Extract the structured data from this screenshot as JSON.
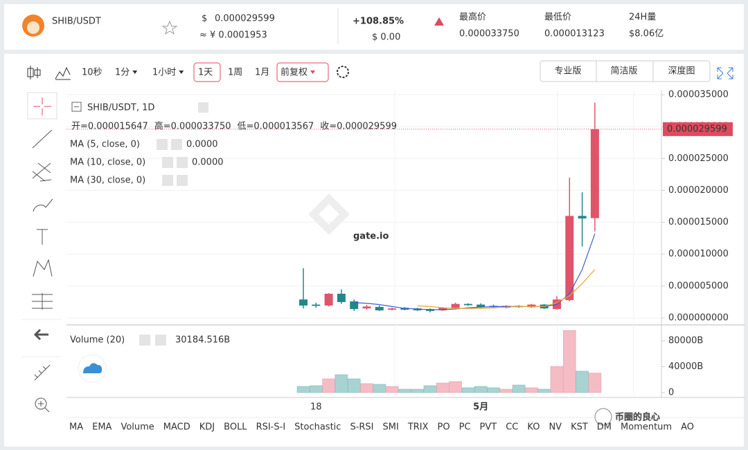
{
  "header": {
    "pair": "SHIB/USDT",
    "currency_symbol": "$",
    "price": "0.000029599",
    "approx": "≈ ¥ 0.0001953",
    "change": "+108.85%",
    "change_usd": "$ 0.00",
    "stats": [
      {
        "label": "最高价",
        "value": "0.000033750"
      },
      {
        "label": "最低价",
        "value": "0.000013123"
      },
      {
        "label": "24H量",
        "value": "$8.06亿"
      }
    ]
  },
  "toolbar": {
    "intervals": [
      "10秒",
      "1分",
      "1小时",
      "1天",
      "1周",
      "1月"
    ],
    "adjust": "前复权",
    "views": [
      "专业版",
      "简洁版",
      "深度图"
    ]
  },
  "chart_data": {
    "type": "candlestick",
    "title": "SHIB/USDT, 1D",
    "ohlc_header": [
      {
        "label": "开=",
        "value": "0.000015647"
      },
      {
        "label": "高=",
        "value": "0.000033750"
      },
      {
        "label": "低=",
        "value": "0.000013567"
      },
      {
        "label": "收=",
        "value": "0.000029599"
      }
    ],
    "categories": [
      null,
      "18",
      null,
      null,
      null,
      null,
      null,
      null,
      null,
      null,
      null,
      null,
      null,
      null,
      "5月",
      null,
      null,
      null,
      null,
      null,
      null,
      null,
      null,
      null
    ],
    "open": [
      2.9e-06,
      2.1e-06,
      1.95e-06,
      3.8e-06,
      2.6e-06,
      1.5e-06,
      1.73e-06,
      1.3e-06,
      1.6e-06,
      1.5e-06,
      1.4e-06,
      1.2e-06,
      1.6e-06,
      2.2e-06,
      2.1e-06,
      1.9e-06,
      1.6e-06,
      1.9e-06,
      1.7e-06,
      2.1e-06,
      1.4e-06,
      2.8e-06,
      1.6e-05,
      1.5647e-05
    ],
    "high": [
      7.8e-06,
      2.4e-06,
      3.9e-06,
      4.5e-06,
      2.9e-06,
      2.06e-06,
      1.95e-06,
      1.6e-06,
      1.7e-06,
      1.6e-06,
      1.5e-06,
      1.7e-06,
      2.4e-06,
      2.3e-06,
      2.3e-06,
      2.1e-06,
      2e-06,
      2e-06,
      2.2e-06,
      2.2e-06,
      3.4e-06,
      2.2e-05,
      1.97e-05,
      3.375e-05
    ],
    "low": [
      1.5e-06,
      1.6e-06,
      1.8e-06,
      2.2e-06,
      1.1e-06,
      1.3e-06,
      1.08e-06,
      1.2e-06,
      1.2e-06,
      1.1e-06,
      8.7e-07,
      1.1e-06,
      1.5e-06,
      1.9e-06,
      1.6e-06,
      1.6e-06,
      1.5e-06,
      1.6e-06,
      1.6e-06,
      1.4e-06,
      1.3e-06,
      2.6e-06,
      1.12e-05,
      1.3567e-05
    ],
    "close": [
      1.95e-06,
      1.9e-06,
      3.8e-06,
      2.5e-06,
      1.4e-06,
      1.8e-06,
      1.19e-06,
      1.5e-06,
      1.3e-06,
      1.2e-06,
      1.1e-06,
      1.6e-06,
      2.2e-06,
      2e-06,
      1.7e-06,
      1.7e-06,
      1.9e-06,
      1.7e-06,
      2.1e-06,
      1.5e-06,
      2.9e-06,
      1.6e-05,
      1.56e-05,
      2.9599e-05
    ],
    "up_color": "#e0546a",
    "down_color": "#23878a",
    "ylim": [
      -8.67e-07,
      3.576e-05
    ],
    "yticks": [
      {
        "value": 0,
        "label": "0.000000000"
      },
      {
        "value": 5e-06,
        "label": "0.000005000"
      },
      {
        "value": 1e-05,
        "label": "0.000010000"
      },
      {
        "value": 1.5e-05,
        "label": "0.000015000"
      },
      {
        "value": 2e-05,
        "label": "0.000020000"
      },
      {
        "value": 2.5e-05,
        "label": "0.000025000"
      },
      {
        "value": 3e-05,
        "label": "0.000030000"
      },
      {
        "value": 3.5e-05,
        "label": "0.000035000"
      }
    ],
    "grid": true,
    "last_price_label": "0.000029599",
    "ma": [
      {
        "name": "MA (5, close, 0)",
        "color": "#3a5fd8",
        "value_label": "0.0000",
        "values": [
          null,
          null,
          null,
          null,
          2.4e-06,
          2.3e-06,
          2.1e-06,
          1.8e-06,
          1.5e-06,
          1.4e-06,
          1.3e-06,
          1.3e-06,
          1.4e-06,
          1.6e-06,
          1.7e-06,
          1.8e-06,
          1.8e-06,
          1.8e-06,
          1.8e-06,
          1.8e-06,
          2.1e-06,
          3.8e-06,
          7.6e-06,
          1.32e-05
        ]
      },
      {
        "name": "MA (10, close, 0)",
        "color": "#f0a030",
        "value_label": "0.0000",
        "values": [
          null,
          null,
          null,
          null,
          null,
          null,
          null,
          null,
          null,
          1.9e-06,
          1.8e-06,
          1.6e-06,
          1.5e-06,
          1.5e-06,
          1.5e-06,
          1.6e-06,
          1.7e-06,
          1.8e-06,
          1.8e-06,
          1.8e-06,
          2.4e-06,
          3.5e-06,
          5.4e-06,
          7.6e-06
        ]
      },
      {
        "name": "MA (30, close, 0)"
      }
    ],
    "volume": {
      "name": "Volume (20)",
      "value_label": "30184.516B",
      "values": [
        9600,
        10700,
        21300,
        27700,
        21300,
        13900,
        12800,
        9600,
        5300,
        5300,
        10700,
        14900,
        17100,
        7500,
        9600,
        7500,
        5300,
        11700,
        7500,
        5300,
        40500,
        96000,
        33100,
        30184.516
      ],
      "ylim": [
        -7500,
        102400
      ],
      "yticks": [
        0,
        {
          "value": 40000,
          "label": "40000B"
        },
        {
          "value": 80000,
          "label": "80000B"
        }
      ],
      "up_color": "#f4bcc5",
      "down_color": "#a9d3d3"
    },
    "watermark": "gate.io"
  },
  "indicators": [
    "MA",
    "EMA",
    "Volume",
    "MACD",
    "KDJ",
    "BOLL",
    "RSI-S-I",
    "Stochastic",
    "S-RSI",
    "SMI",
    "TRIX",
    "PO",
    "PC",
    "PVT",
    "CC",
    "KO",
    "NV",
    "KST",
    "DM",
    "Momentum",
    "AO"
  ],
  "brand": "币圈的良心"
}
